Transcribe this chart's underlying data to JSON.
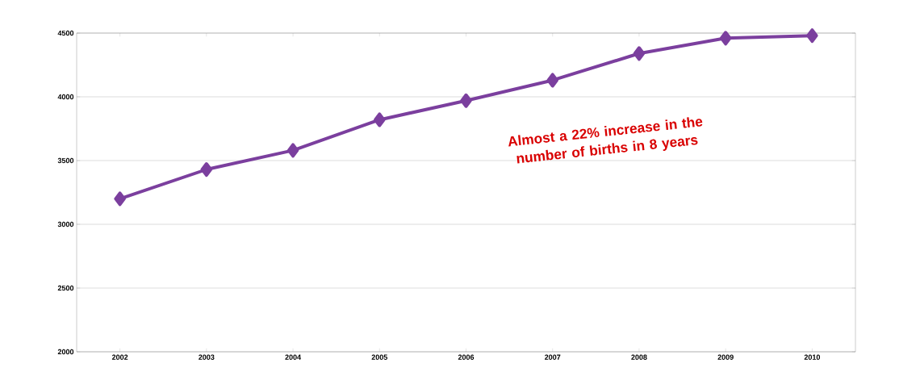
{
  "chart_data": {
    "type": "line",
    "categories": [
      "2002",
      "2003",
      "2004",
      "2005",
      "2006",
      "2007",
      "2008",
      "2009",
      "2010"
    ],
    "series": [
      {
        "color": "#7b3f9e",
        "values": [
          3200,
          3430,
          3580,
          3820,
          3970,
          4130,
          4340,
          4460,
          4480
        ]
      }
    ],
    "ylim": [
      2000,
      4500
    ],
    "yticks": [
      2000,
      2500,
      3000,
      3500,
      4000,
      4500
    ],
    "grid": "y",
    "marker": "diamond",
    "line_style": "solid",
    "annotations": [
      "Almost a 22% increase in the number of births in 8 years"
    ]
  }
}
